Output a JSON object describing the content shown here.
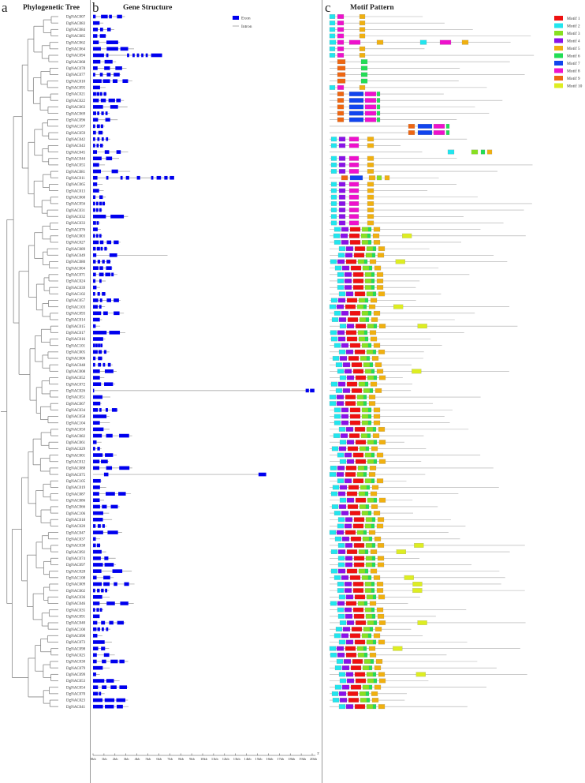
{
  "panels": {
    "a": {
      "letter": "a",
      "title": "Phylogenetic Tree"
    },
    "b": {
      "letter": "b",
      "title": "Gene Structure"
    },
    "c": {
      "letter": "c",
      "title": "Motif Pattern"
    }
  },
  "gene_legend": {
    "exon_label": "Exon",
    "intron_label": "Intron",
    "exon_color": "#0000ee",
    "intron_color": "#999999"
  },
  "axis": {
    "ticks": [
      "0kb",
      "1kb",
      "2kb",
      "3kb",
      "4kb",
      "5kb",
      "6kb",
      "7kb",
      "8kb",
      "9kb",
      "10kb",
      "11kb",
      "12kb",
      "13kb",
      "14kb",
      "15kb",
      "16kb",
      "17kb",
      "18kb",
      "19kb",
      "20kb"
    ],
    "end_label": "3'"
  },
  "motif_legend": [
    {
      "name": "Motif 1",
      "color": "#ee1111"
    },
    {
      "name": "Motif 2",
      "color": "#22e5ee"
    },
    {
      "name": "Motif 3",
      "color": "#88e022"
    },
    {
      "name": "Motif 4",
      "color": "#8a11e8"
    },
    {
      "name": "Motif 5",
      "color": "#f0b010"
    },
    {
      "name": "Motif 6",
      "color": "#22dd55"
    },
    {
      "name": "Motif 7",
      "color": "#1144ee"
    },
    {
      "name": "Motif 8",
      "color": "#ee11cc"
    },
    {
      "name": "Motif 9",
      "color": "#ee6611"
    },
    {
      "name": "Motif 10",
      "color": "#dded22"
    }
  ],
  "genes": [
    "DgNAC007",
    "DgNAC083",
    "DgNAC084",
    "DgNAC085",
    "DgNAC062",
    "DgNAC064",
    "DgNAC094",
    "DgNAC068",
    "DgNAC078",
    "DgNAC077",
    "DgNAC010",
    "DgNAC095",
    "DgNAC021",
    "DgNAC022",
    "DgNAC063",
    "DgNAC069",
    "DgNAC096",
    "DgNAC107",
    "DgNAC059",
    "DgNAC042",
    "DgNAC043",
    "DgNAC045",
    "DgNAC044",
    "DgNAC055",
    "DgNAC081",
    "DgNAC011",
    "DgNAC065",
    "DgNAC013",
    "DgNAC060",
    "DgNAC056",
    "DgNAC031",
    "DgNAC032",
    "DgNAC033",
    "DgNAC076",
    "DgNAC003",
    "DgNAC027",
    "DgNAC089",
    "DgNAC049",
    "DgNAC080",
    "DgNAC004",
    "DgNAC071",
    "DgNAC024",
    "DgNAC039",
    "DgNAC102",
    "DgNAC057",
    "DgNAC103",
    "DgNAC093",
    "DgNAC014",
    "DgNAC015",
    "DgNAC017",
    "DgNAC016",
    "DgNAC101",
    "DgNAC005",
    "DgNAC006",
    "DgNAC048",
    "DgNAC008",
    "DgNAC052",
    "DgNAC072",
    "DgNAC026",
    "DgNAC051",
    "DgNAC067",
    "DgNAC034",
    "DgNAC058",
    "DgNAC104",
    "DgNAC050",
    "DgNAC082",
    "DgNAC061",
    "DgNAC029",
    "DgNAC001",
    "DgNAC012",
    "DgNAC088",
    "DgNAC075",
    "DgNAC105",
    "DgNAC019",
    "DgNAC087",
    "DgNAC086",
    "DgNAC066",
    "DgNAC106",
    "DgNAC018",
    "DgNAC020",
    "DgNAC047",
    "DgNAC037",
    "DgNAC038",
    "DgNAC092",
    "DgNAC074",
    "DgNAC097",
    "DgNAC028",
    "DgNAC108",
    "DgNAC009",
    "DgNAC002",
    "DgNAC036",
    "DgNAC046",
    "DgNAC035",
    "DgNAC091",
    "DgNAC040",
    "DgNAC100",
    "DgNAC090",
    "DgNAC073",
    "DgNAC098",
    "DgNAC025",
    "DgNAC030",
    "DgNAC079",
    "DgNAC099",
    "DgNAC053",
    "DgNAC054",
    "DgNAC070",
    "DgNAC023",
    "DgNAC041"
  ]
}
